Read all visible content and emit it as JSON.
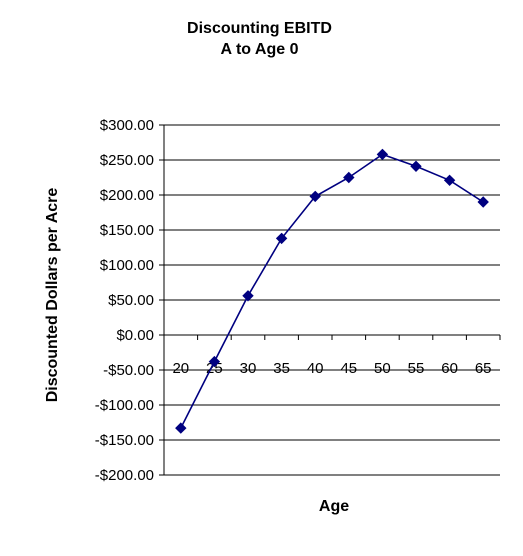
{
  "chart_data": {
    "type": "line",
    "title_line1": "Discounting EBITD",
    "title_line2": "A to Age 0",
    "xlabel": "Age",
    "ylabel": "Discounted Dollars per Acre",
    "x": [
      20,
      25,
      30,
      35,
      40,
      45,
      50,
      55,
      60,
      65
    ],
    "series": [
      {
        "values": [
          -133,
          -38,
          56,
          138,
          198,
          225,
          258,
          241,
          221,
          190
        ]
      }
    ],
    "ylim": [
      -200,
      300
    ],
    "yticks": [
      300,
      250,
      200,
      150,
      100,
      50,
      0,
      -50,
      -100,
      -150,
      -200
    ],
    "ytick_labels": [
      "$300.00",
      "$250.00",
      "$200.00",
      "$150.00",
      "$100.00",
      "$50.00",
      "$0.00",
      "-$50.00",
      "-$100.00",
      "-$150.00",
      "-$200.00"
    ],
    "grid": true,
    "legend": "none",
    "colors": {
      "line": "#000080",
      "marker": "#000080",
      "grid": "#000000"
    }
  }
}
